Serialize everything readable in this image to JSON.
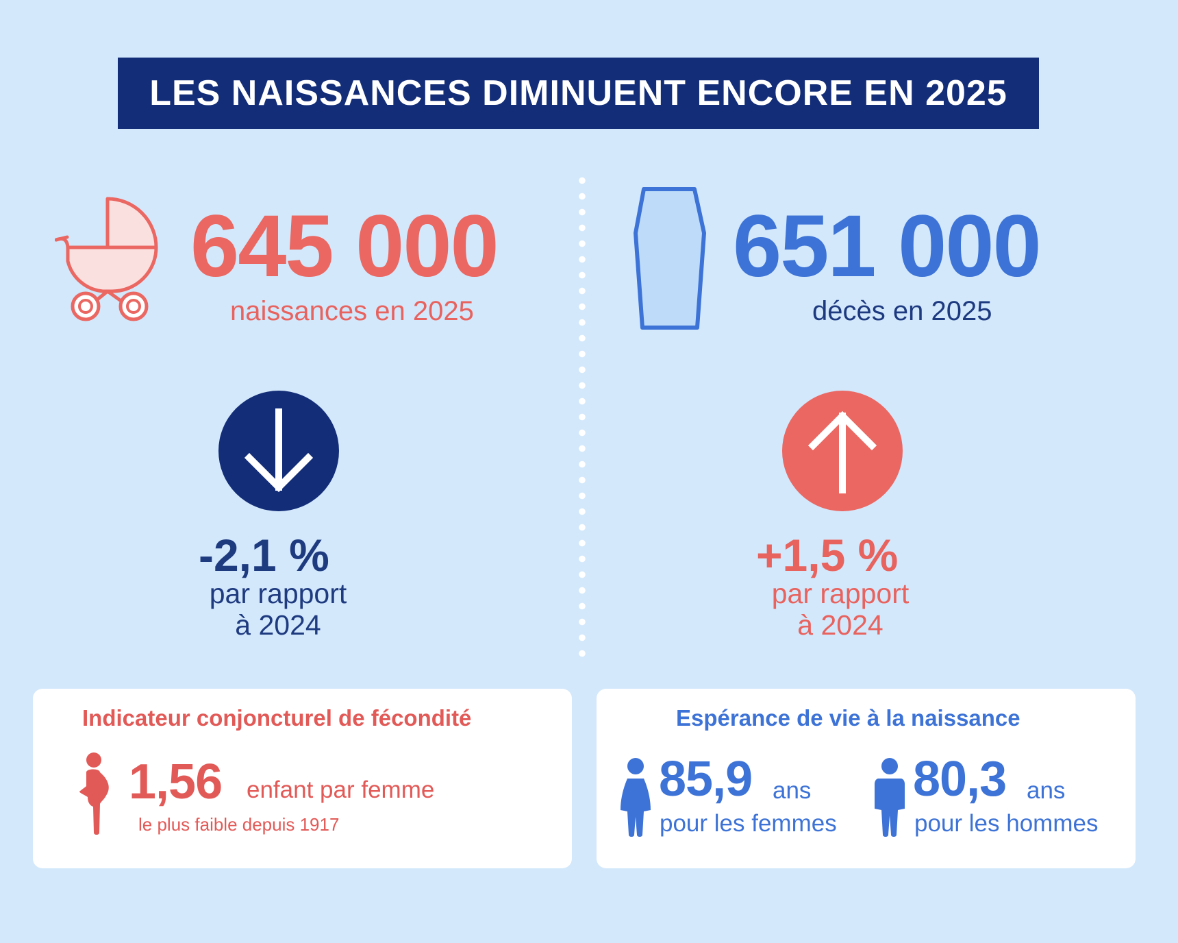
{
  "title": "LES NAISSANCES DIMINUENT ENCORE EN 2025",
  "births": {
    "icon": "baby-carriage-icon",
    "value": "645 000",
    "label": "naissances en 2025",
    "change": "-2,1 %",
    "change_line1": "par rapport",
    "change_line2": "à 2024",
    "arrow_icon": "arrow-down-icon",
    "color": "#ea6762",
    "circle_color": "#132d78"
  },
  "deaths": {
    "icon": "coffin-icon",
    "value": "651 000",
    "label": "décès en 2025",
    "change": "+1,5 %",
    "change_line1": "par rapport",
    "change_line2": "à 2024",
    "arrow_icon": "arrow-up-icon",
    "color": "#3d73d6",
    "circle_color": "#ea6762"
  },
  "fertility": {
    "title": "Indicateur conjoncturel de fécondité",
    "icon": "pregnant-woman-icon",
    "value": "1,56",
    "unit": "enfant par femme",
    "note": "le plus faible depuis 1917"
  },
  "life_expectancy": {
    "title": "Espérance de vie à la naissance",
    "women": {
      "icon": "woman-icon",
      "value": "85,9",
      "unit": "ans",
      "label": "pour les femmes"
    },
    "men": {
      "icon": "man-icon",
      "value": "80,3",
      "unit": "ans",
      "label": "pour les hommes"
    }
  }
}
